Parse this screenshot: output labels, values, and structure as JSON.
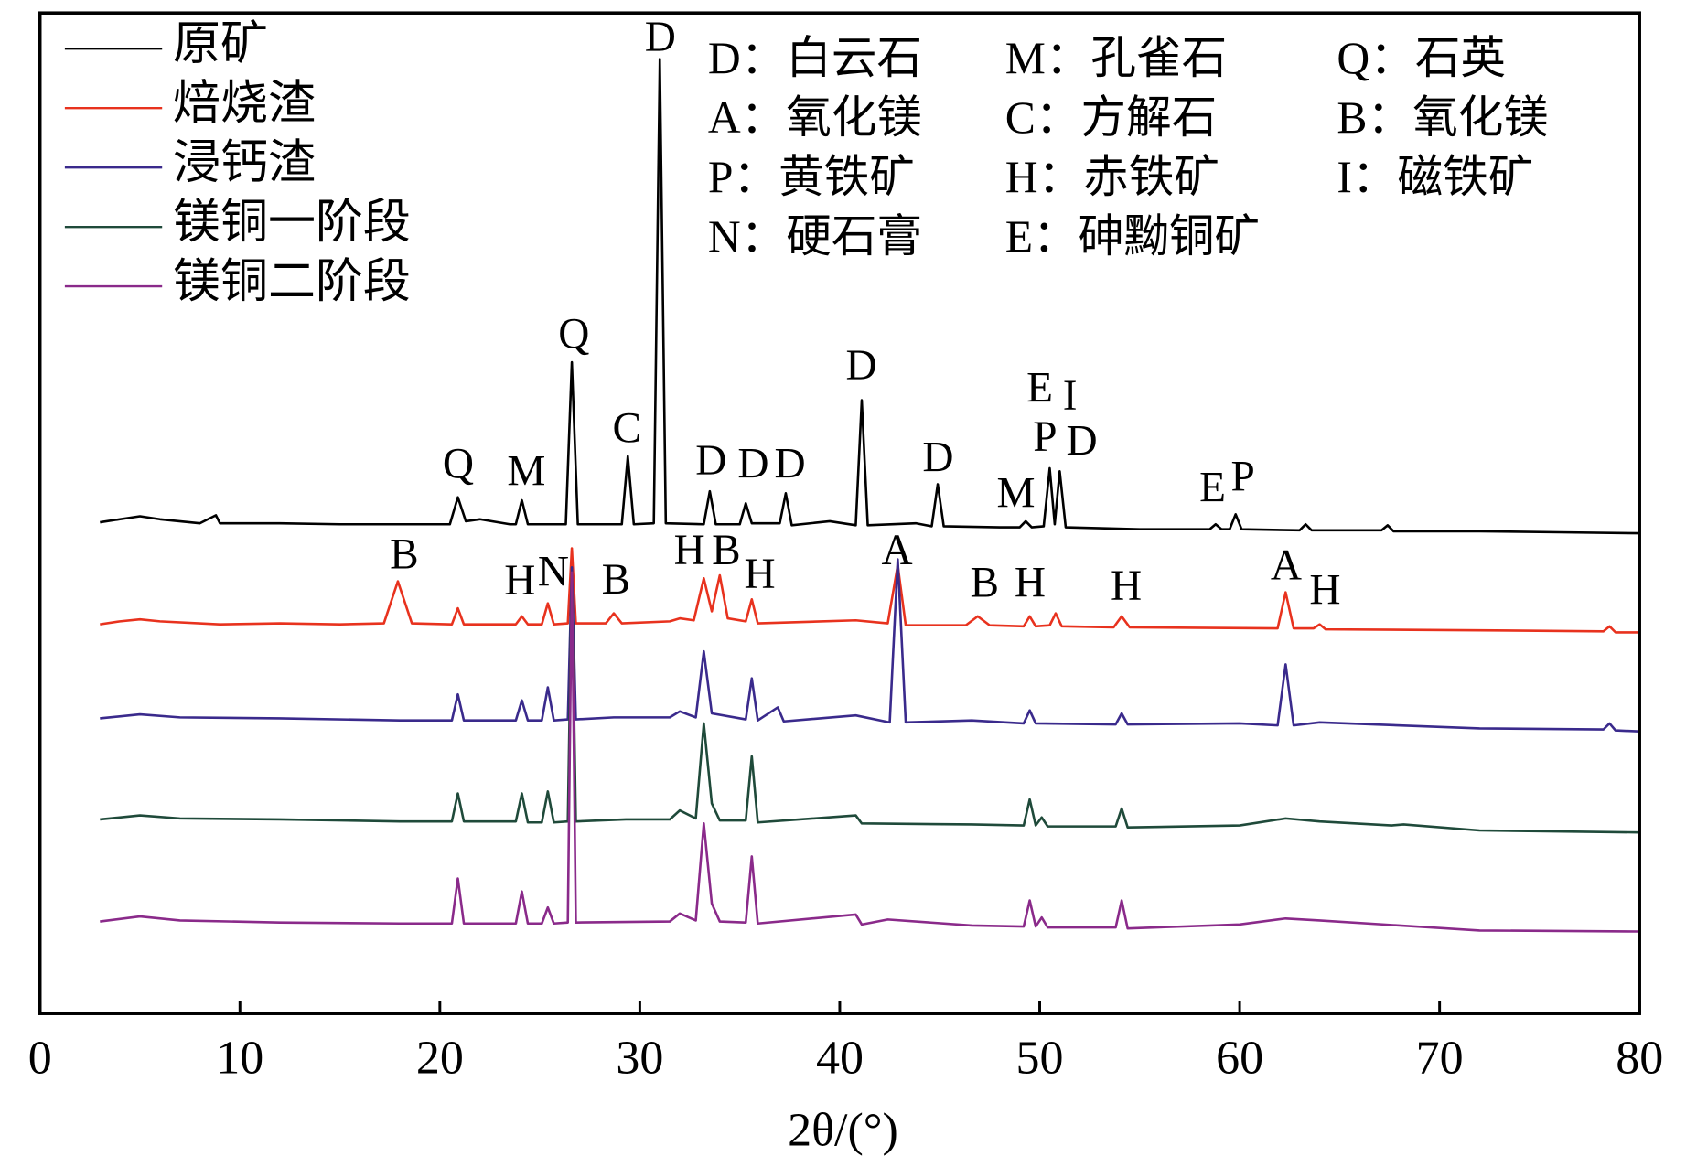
{
  "chart_data": {
    "type": "line",
    "x_label": "2θ/(°)",
    "xlim": [
      0,
      80
    ],
    "xticks": [
      0,
      10,
      20,
      30,
      40,
      50,
      60,
      70,
      80
    ],
    "ylim": [
      0,
      100
    ],
    "legend": "upper left",
    "series": [
      {
        "name": "原矿",
        "color": "#000000",
        "x": [
          3,
          4,
          5,
          6,
          8,
          8.8,
          9,
          12,
          15,
          18,
          20.5,
          20.9,
          21.3,
          22,
          23.5,
          23.8,
          24.1,
          24.4,
          26.3,
          26.6,
          26.9,
          29.1,
          29.4,
          29.7,
          30.7,
          31.0,
          31.3,
          33.2,
          33.5,
          33.8,
          35.0,
          35.3,
          35.6,
          37.0,
          37.3,
          37.6,
          39.5,
          40.8,
          41.1,
          41.4,
          43.8,
          44.6,
          44.9,
          45.2,
          48,
          49.0,
          49.3,
          49.6,
          50.2,
          50.5,
          50.75,
          51.0,
          51.3,
          55,
          58.5,
          58.8,
          59.1,
          59.5,
          59.8,
          60.1,
          63.0,
          63.3,
          63.6,
          67.1,
          67.4,
          67.7,
          72,
          76,
          80
        ],
        "values": [
          49.1,
          49.4,
          49.7,
          49.4,
          49.0,
          49.8,
          49.0,
          49.0,
          48.9,
          48.9,
          48.9,
          51.6,
          49.2,
          49.4,
          48.9,
          48.9,
          51.3,
          48.9,
          48.9,
          65.1,
          48.9,
          48.9,
          55.7,
          48.9,
          49.0,
          95.4,
          49.0,
          48.9,
          52.2,
          48.9,
          48.9,
          51.0,
          49.0,
          49.0,
          52.0,
          48.8,
          49.2,
          48.8,
          61.3,
          48.8,
          49.0,
          48.7,
          52.9,
          48.7,
          48.6,
          48.6,
          49.2,
          48.6,
          48.7,
          54.5,
          48.9,
          54.2,
          48.6,
          48.4,
          48.4,
          48.9,
          48.4,
          48.4,
          49.9,
          48.4,
          48.3,
          48.9,
          48.3,
          48.3,
          48.8,
          48.2,
          48.2,
          48.1,
          48.0
        ]
      },
      {
        "name": "焙烧渣",
        "color": "#e8321e",
        "x": [
          3,
          4,
          5,
          6,
          9,
          12,
          15,
          17.2,
          17.9,
          18.6,
          20.6,
          20.9,
          21.2,
          23.8,
          24.1,
          24.4,
          25.1,
          25.4,
          25.7,
          26.4,
          26.6,
          26.8,
          28.3,
          28.7,
          29.1,
          31.5,
          32.0,
          32.7,
          33.2,
          33.6,
          34.0,
          34.4,
          35.3,
          35.6,
          35.9,
          40.8,
          42.4,
          42.9,
          43.3,
          46.3,
          46.9,
          47.5,
          49.2,
          49.5,
          49.8,
          50.5,
          50.8,
          51.1,
          53.7,
          54.1,
          54.5,
          61.9,
          62.3,
          62.7,
          63.7,
          64.0,
          64.3,
          72,
          78.2,
          78.5,
          78.8,
          80
        ],
        "values": [
          38.9,
          39.2,
          39.4,
          39.2,
          38.9,
          39.0,
          38.9,
          39.0,
          43.2,
          39.0,
          38.9,
          40.5,
          38.9,
          38.9,
          39.7,
          38.9,
          38.9,
          41.0,
          38.9,
          39.0,
          46.5,
          39.0,
          39.0,
          40.0,
          39.0,
          39.2,
          39.5,
          39.3,
          43.5,
          40.2,
          43.8,
          39.5,
          39.2,
          41.4,
          39.0,
          39.3,
          39.0,
          44.8,
          38.8,
          38.8,
          39.7,
          38.8,
          38.7,
          39.7,
          38.7,
          38.8,
          40.0,
          38.7,
          38.6,
          39.7,
          38.6,
          38.5,
          42.1,
          38.5,
          38.5,
          38.9,
          38.4,
          38.3,
          38.2,
          38.7,
          38.1,
          38.1
        ]
      },
      {
        "name": "浸钙渣",
        "color": "#3a2a8c",
        "x": [
          3,
          5,
          7,
          12,
          18,
          20.6,
          20.9,
          21.2,
          23.8,
          24.1,
          24.4,
          25.1,
          25.4,
          25.7,
          26.4,
          26.6,
          26.8,
          28.7,
          31.5,
          32.0,
          32.8,
          33.2,
          33.6,
          35.3,
          35.6,
          35.9,
          36.9,
          37.2,
          40.8,
          42.5,
          42.9,
          43.3,
          46.6,
          49.2,
          49.5,
          49.8,
          53.8,
          54.1,
          54.4,
          60,
          61.9,
          62.3,
          62.7,
          64.0,
          72,
          78.2,
          78.5,
          78.8,
          80
        ],
        "values": [
          29.5,
          29.9,
          29.6,
          29.5,
          29.3,
          29.3,
          31.9,
          29.3,
          29.3,
          31.3,
          29.3,
          29.3,
          32.6,
          29.3,
          29.4,
          44.6,
          29.4,
          29.6,
          29.6,
          30.2,
          29.6,
          36.2,
          30.0,
          29.4,
          33.5,
          29.3,
          30.6,
          29.2,
          29.8,
          29.1,
          45.4,
          29.1,
          29.3,
          29.0,
          30.3,
          29.0,
          28.9,
          30.0,
          28.9,
          29.0,
          28.8,
          34.9,
          28.8,
          29.1,
          28.5,
          28.4,
          29.0,
          28.3,
          28.2
        ]
      },
      {
        "name": "镁铜一阶段",
        "color": "#1f4a3a",
        "x": [
          3,
          5,
          7,
          12,
          18,
          20.6,
          20.9,
          21.2,
          23.8,
          24.1,
          24.4,
          25.1,
          25.4,
          25.7,
          26.4,
          26.6,
          26.8,
          29.3,
          31.5,
          32.0,
          32.8,
          33.2,
          33.6,
          34.0,
          35.3,
          35.6,
          35.9,
          40.8,
          41.1,
          46.6,
          49.2,
          49.5,
          49.8,
          50.1,
          50.4,
          53.8,
          54.1,
          54.4,
          60,
          62.3,
          64.0,
          67.6,
          68.2,
          72,
          80
        ],
        "values": [
          19.4,
          19.8,
          19.5,
          19.4,
          19.2,
          19.2,
          22.0,
          19.2,
          19.2,
          22.0,
          19.1,
          19.1,
          22.2,
          19.1,
          19.2,
          44.1,
          19.2,
          19.4,
          19.4,
          20.3,
          19.5,
          29.0,
          21.0,
          19.3,
          19.3,
          25.7,
          19.1,
          19.8,
          19.0,
          18.9,
          18.8,
          21.4,
          18.8,
          19.6,
          18.7,
          18.7,
          20.5,
          18.6,
          18.8,
          19.5,
          19.2,
          18.8,
          18.9,
          18.3,
          18.1
        ]
      },
      {
        "name": "镁铜二阶段",
        "color": "#8a2a8a",
        "x": [
          3,
          5,
          7,
          12,
          18,
          20.6,
          20.9,
          21.2,
          23.8,
          24.1,
          24.4,
          25.1,
          25.4,
          25.7,
          26.4,
          26.6,
          26.8,
          31.5,
          32.0,
          32.8,
          33.2,
          33.6,
          34.0,
          35.3,
          35.6,
          35.9,
          40.8,
          41.1,
          42.4,
          46.6,
          49.2,
          49.5,
          49.8,
          50.1,
          50.4,
          53.8,
          54.1,
          54.4,
          60,
          62.3,
          64.0,
          72,
          80
        ],
        "values": [
          9.2,
          9.7,
          9.3,
          9.1,
          9.0,
          9.0,
          13.5,
          9.0,
          9.0,
          12.2,
          9.0,
          9.0,
          10.6,
          9.0,
          9.1,
          44.1,
          9.1,
          9.2,
          10.0,
          9.3,
          19.0,
          11.0,
          9.2,
          9.1,
          15.7,
          9.0,
          9.9,
          8.9,
          9.4,
          8.8,
          8.7,
          11.3,
          8.7,
          9.6,
          8.6,
          8.6,
          11.3,
          8.5,
          8.9,
          9.5,
          9.3,
          8.3,
          8.2
        ]
      }
    ],
    "phase_key": [
      "D：白云石",
      "M：孔雀石",
      "Q：石英",
      "A：氧化镁",
      "C：方解石",
      "B：氧化镁",
      "P：黄铁矿",
      "H：赤铁矿",
      "I：磁铁矿",
      "N：硬石膏",
      "E：砷黝铜矿"
    ],
    "peak_labels": [
      "Q",
      "M",
      "Q",
      "C",
      "D",
      "D",
      "D",
      "D",
      "D",
      "D",
      "M",
      "E",
      "I",
      "P",
      "D",
      "E",
      "P",
      "B",
      "H",
      "N",
      "B",
      "H",
      "B",
      "H",
      "A",
      "B",
      "H",
      "H",
      "A",
      "H"
    ]
  }
}
